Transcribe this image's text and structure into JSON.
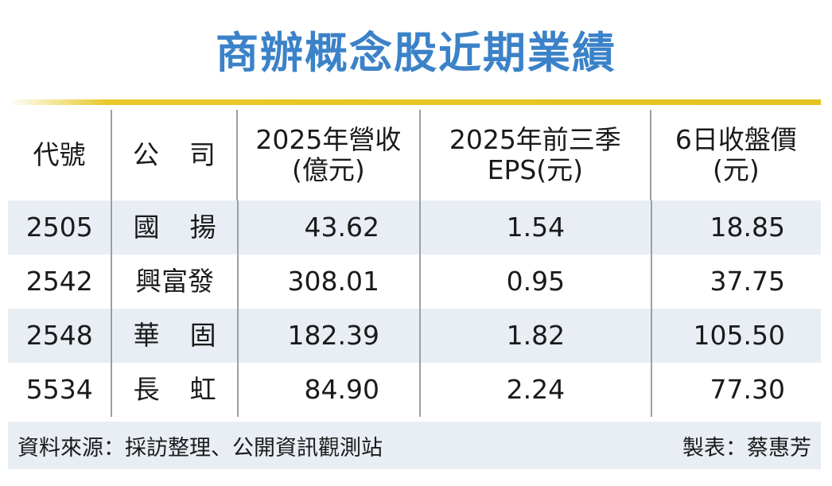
{
  "title": "商辦概念股近期業績",
  "columns": [
    {
      "line1": "代號",
      "line2": ""
    },
    {
      "line1": "公司",
      "line2": ""
    },
    {
      "line1": "2025年營收",
      "line2": "(億元)"
    },
    {
      "line1": "2025年前三季",
      "line2": "EPS(元)"
    },
    {
      "line1": "6日收盤價",
      "line2": "(元)"
    }
  ],
  "rows": [
    {
      "code": "2505",
      "company": "國揚",
      "revenue": "43.62",
      "eps": "1.54",
      "close": "18.85"
    },
    {
      "code": "2542",
      "company": "興富發",
      "revenue": "308.01",
      "eps": "0.95",
      "close": "37.75"
    },
    {
      "code": "2548",
      "company": "華固",
      "revenue": "182.39",
      "eps": "1.82",
      "close": "105.50"
    },
    {
      "code": "5534",
      "company": "長虹",
      "revenue": "84.90",
      "eps": "2.24",
      "close": "77.30"
    }
  ],
  "footer": {
    "source": "資料來源：採訪整理、公開資訊觀測站",
    "credit": "製表：蔡惠芳"
  },
  "colors": {
    "title": "#3b82c8",
    "rule": "#e3c21d",
    "shade": "#e9eef5"
  }
}
